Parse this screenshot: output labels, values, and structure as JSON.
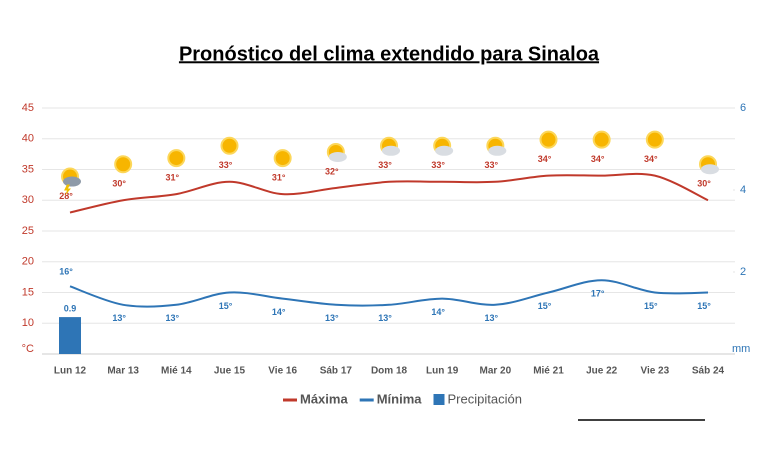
{
  "chart_data": {
    "type": "line",
    "title": "Pronóstico del clima extendido para Sinaloa",
    "categories": [
      "Lun 12",
      "Mar 13",
      "Mié 14",
      "Jue 15",
      "Vie 16",
      "Sáb 17",
      "Dom 18",
      "Lun 19",
      "Mar 20",
      "Mié 21",
      "Jue 22",
      "Vie 23",
      "Sáb 24"
    ],
    "series": [
      {
        "name": "Máxima",
        "color": "#c0392b",
        "values": [
          28,
          30,
          31,
          33,
          31,
          32,
          33,
          33,
          33,
          34,
          34,
          34,
          30
        ],
        "value_labels": [
          "28°",
          "30°",
          "31°",
          "33°",
          "31°",
          "32°",
          "33°",
          "33°",
          "33°",
          "34°",
          "34°",
          "34°",
          "30°"
        ]
      },
      {
        "name": "Mínima",
        "color": "#2e75b6",
        "values": [
          16,
          13,
          13,
          15,
          14,
          13,
          13,
          14,
          13,
          15,
          17,
          15,
          15
        ],
        "value_labels": [
          "16°",
          "13°",
          "13°",
          "15°",
          "14°",
          "13°",
          "13°",
          "14°",
          "13°",
          "15°",
          "17°",
          "15°",
          "15°"
        ]
      },
      {
        "name": "Precipitación",
        "color": "#2e75b6",
        "type": "bar",
        "axis": "y2",
        "values": [
          0.9,
          null,
          null,
          null,
          null,
          null,
          null,
          null,
          null,
          null,
          null,
          null,
          null
        ]
      }
    ],
    "y_label": "°C",
    "y2_label": "mm",
    "ylim": [
      5,
      45
    ],
    "yticks": [
      10,
      15,
      20,
      25,
      30,
      35,
      40,
      45
    ],
    "y2lim": [
      0,
      6
    ],
    "y2ticks": [
      2,
      4,
      6
    ],
    "grid": true
  }
}
